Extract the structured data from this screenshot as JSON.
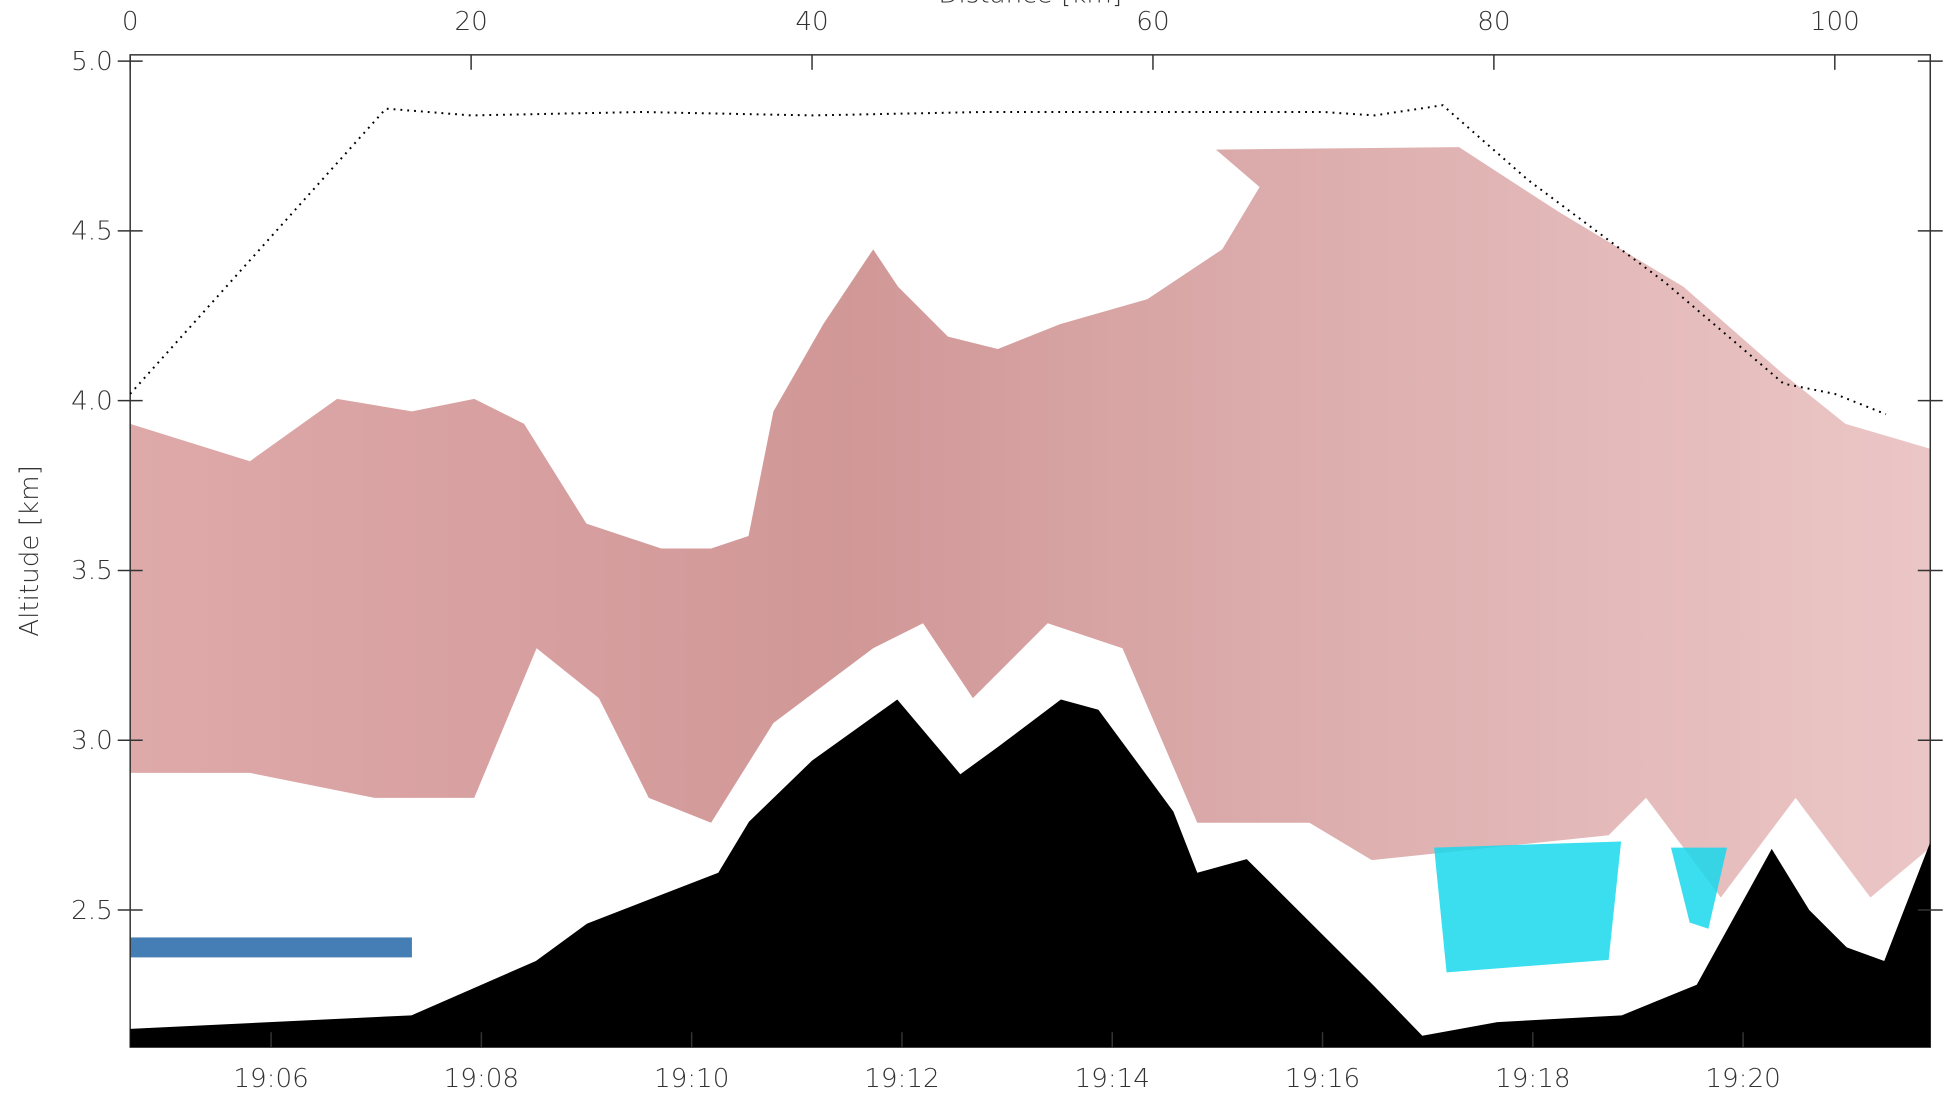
{
  "chart_data": {
    "type": "line",
    "xlabel": "Distance [km]",
    "ylabel": "Altitude [km]",
    "xlim": [
      0,
      105.6
    ],
    "xticks": [
      0,
      20,
      40,
      60,
      80,
      100
    ],
    "x2lim": [
      4.66,
      21.78
    ],
    "x2ticks": [
      {
        "value": 6,
        "label": "19:06"
      },
      {
        "value": 8,
        "label": "19:08"
      },
      {
        "value": 10,
        "label": "19:10"
      },
      {
        "value": 12,
        "label": "19:12"
      },
      {
        "value": 14,
        "label": "19:14"
      },
      {
        "value": 16,
        "label": "19:16"
      },
      {
        "value": 18,
        "label": "19:18"
      },
      {
        "value": 20,
        "label": "19:20"
      }
    ],
    "ylim": [
      2.1,
      5.0
    ],
    "yticks": [
      {
        "value": 5,
        "label": "5.0"
      },
      4.5,
      {
        "value": 4,
        "label": "4.0"
      },
      3.5,
      {
        "value": 3,
        "label": "3.0"
      },
      2.5
    ],
    "series": [
      {
        "color": "#000000",
        "style": "dotted",
        "x": [
          0,
          15,
          20,
          30,
          40,
          50,
          60,
          70,
          73,
          77,
          82,
          90,
          97,
          100,
          103
        ],
        "values": [
          4.02,
          4.86,
          4.84,
          4.85,
          4.84,
          4.85,
          4.85,
          4.85,
          4.84,
          4.87,
          4.65,
          4.35,
          4.05,
          4.02,
          3.96
        ]
      },
      {
        "color": "#000000",
        "style": "filled",
        "x": [
          0,
          16.5,
          23.8,
          26.8,
          34.5,
          36.3,
          40,
          45,
          48.7,
          50.9,
          54.6,
          56.8,
          61.2,
          62.6,
          65.5,
          69.9,
          72.9,
          75.8,
          80.2,
          87.5,
          91.9,
          96.3,
          98.5,
          100.7,
          102.9,
          105.6
        ],
        "values": [
          2.15,
          2.19,
          2.35,
          2.46,
          2.61,
          2.76,
          2.94,
          3.12,
          2.9,
          2.98,
          3.12,
          3.09,
          2.79,
          2.61,
          2.65,
          2.43,
          2.28,
          2.13,
          2.17,
          2.19,
          2.28,
          2.68,
          2.5,
          2.39,
          2.35,
          2.7
        ]
      }
    ]
  }
}
